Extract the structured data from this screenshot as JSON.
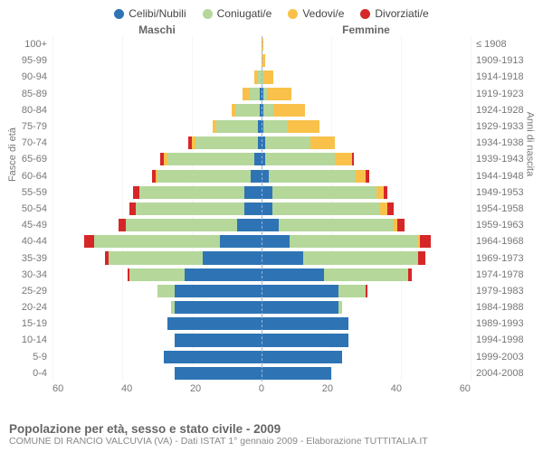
{
  "legend": [
    {
      "label": "Celibi/Nubili",
      "color": "#2e74b5"
    },
    {
      "label": "Coniugati/e",
      "color": "#b5d79a"
    },
    {
      "label": "Vedovi/e",
      "color": "#f9c14a"
    },
    {
      "label": "Divorziati/e",
      "color": "#d62728"
    }
  ],
  "headers": {
    "male": "Maschi",
    "female": "Femmine"
  },
  "axis": {
    "left_label": "Fasce di età",
    "right_label": "Anni di nascita",
    "xmax": 60,
    "xticks_left": [
      60,
      40,
      20,
      0
    ],
    "xticks_right": [
      0,
      20,
      40,
      60
    ]
  },
  "colors": {
    "celibi": "#2e74b5",
    "coniugati": "#b5d79a",
    "vedovi": "#f9c14a",
    "divorziati": "#d62728",
    "center_line": "#9cb3d4",
    "text": "#777777",
    "background": "#ffffff"
  },
  "title": "Popolazione per età, sesso e stato civile - 2009",
  "subtitle": "COMUNE DI RANCIO VALCUVIA (VA) - Dati ISTAT 1° gennaio 2009 - Elaborazione TUTTITALIA.IT",
  "rows": [
    {
      "age": "100+",
      "year": "≤ 1908",
      "m": [
        0,
        0,
        0,
        0
      ],
      "f": [
        0,
        0,
        0.5,
        0
      ]
    },
    {
      "age": "95-99",
      "year": "1909-1913",
      "m": [
        0,
        0,
        0,
        0
      ],
      "f": [
        0,
        0,
        1,
        0
      ]
    },
    {
      "age": "90-94",
      "year": "1914-1918",
      "m": [
        0,
        1,
        1,
        0
      ],
      "f": [
        0,
        0.5,
        3,
        0
      ]
    },
    {
      "age": "85-89",
      "year": "1919-1923",
      "m": [
        0.5,
        3,
        2,
        0
      ],
      "f": [
        0.5,
        1,
        7,
        0
      ]
    },
    {
      "age": "80-84",
      "year": "1924-1928",
      "m": [
        0.5,
        7,
        1,
        0
      ],
      "f": [
        0.5,
        3,
        9,
        0
      ]
    },
    {
      "age": "75-79",
      "year": "1929-1933",
      "m": [
        1,
        12,
        1,
        0
      ],
      "f": [
        0.5,
        7,
        9,
        0
      ]
    },
    {
      "age": "70-74",
      "year": "1934-1938",
      "m": [
        1,
        18,
        1,
        1
      ],
      "f": [
        1,
        13,
        7,
        0
      ]
    },
    {
      "age": "65-69",
      "year": "1939-1943",
      "m": [
        2,
        25,
        1,
        1
      ],
      "f": [
        1,
        20,
        5,
        0.5
      ]
    },
    {
      "age": "60-64",
      "year": "1944-1948",
      "m": [
        3,
        27,
        0.5,
        1
      ],
      "f": [
        2,
        25,
        3,
        1
      ]
    },
    {
      "age": "55-59",
      "year": "1949-1953",
      "m": [
        5,
        30,
        0,
        2
      ],
      "f": [
        3,
        30,
        2,
        1
      ]
    },
    {
      "age": "50-54",
      "year": "1954-1958",
      "m": [
        5,
        31,
        0,
        2
      ],
      "f": [
        3,
        31,
        2,
        2
      ]
    },
    {
      "age": "45-49",
      "year": "1959-1963",
      "m": [
        7,
        32,
        0,
        2
      ],
      "f": [
        5,
        33,
        1,
        2
      ]
    },
    {
      "age": "40-44",
      "year": "1964-1968",
      "m": [
        12,
        36,
        0,
        3
      ],
      "f": [
        8,
        37,
        0.5,
        3
      ]
    },
    {
      "age": "35-39",
      "year": "1969-1973",
      "m": [
        17,
        27,
        0,
        1
      ],
      "f": [
        12,
        33,
        0,
        2
      ]
    },
    {
      "age": "30-34",
      "year": "1974-1978",
      "m": [
        22,
        16,
        0,
        0.5
      ],
      "f": [
        18,
        24,
        0,
        1
      ]
    },
    {
      "age": "25-29",
      "year": "1979-1983",
      "m": [
        25,
        5,
        0,
        0
      ],
      "f": [
        22,
        8,
        0,
        0.5
      ]
    },
    {
      "age": "20-24",
      "year": "1984-1988",
      "m": [
        25,
        1,
        0,
        0
      ],
      "f": [
        22,
        1,
        0,
        0
      ]
    },
    {
      "age": "15-19",
      "year": "1989-1993",
      "m": [
        27,
        0,
        0,
        0
      ],
      "f": [
        25,
        0,
        0,
        0
      ]
    },
    {
      "age": "10-14",
      "year": "1994-1998",
      "m": [
        25,
        0,
        0,
        0
      ],
      "f": [
        25,
        0,
        0,
        0
      ]
    },
    {
      "age": "5-9",
      "year": "1999-2003",
      "m": [
        28,
        0,
        0,
        0
      ],
      "f": [
        23,
        0,
        0,
        0
      ]
    },
    {
      "age": "0-4",
      "year": "2004-2008",
      "m": [
        25,
        0,
        0,
        0
      ],
      "f": [
        20,
        0,
        0,
        0
      ]
    }
  ]
}
